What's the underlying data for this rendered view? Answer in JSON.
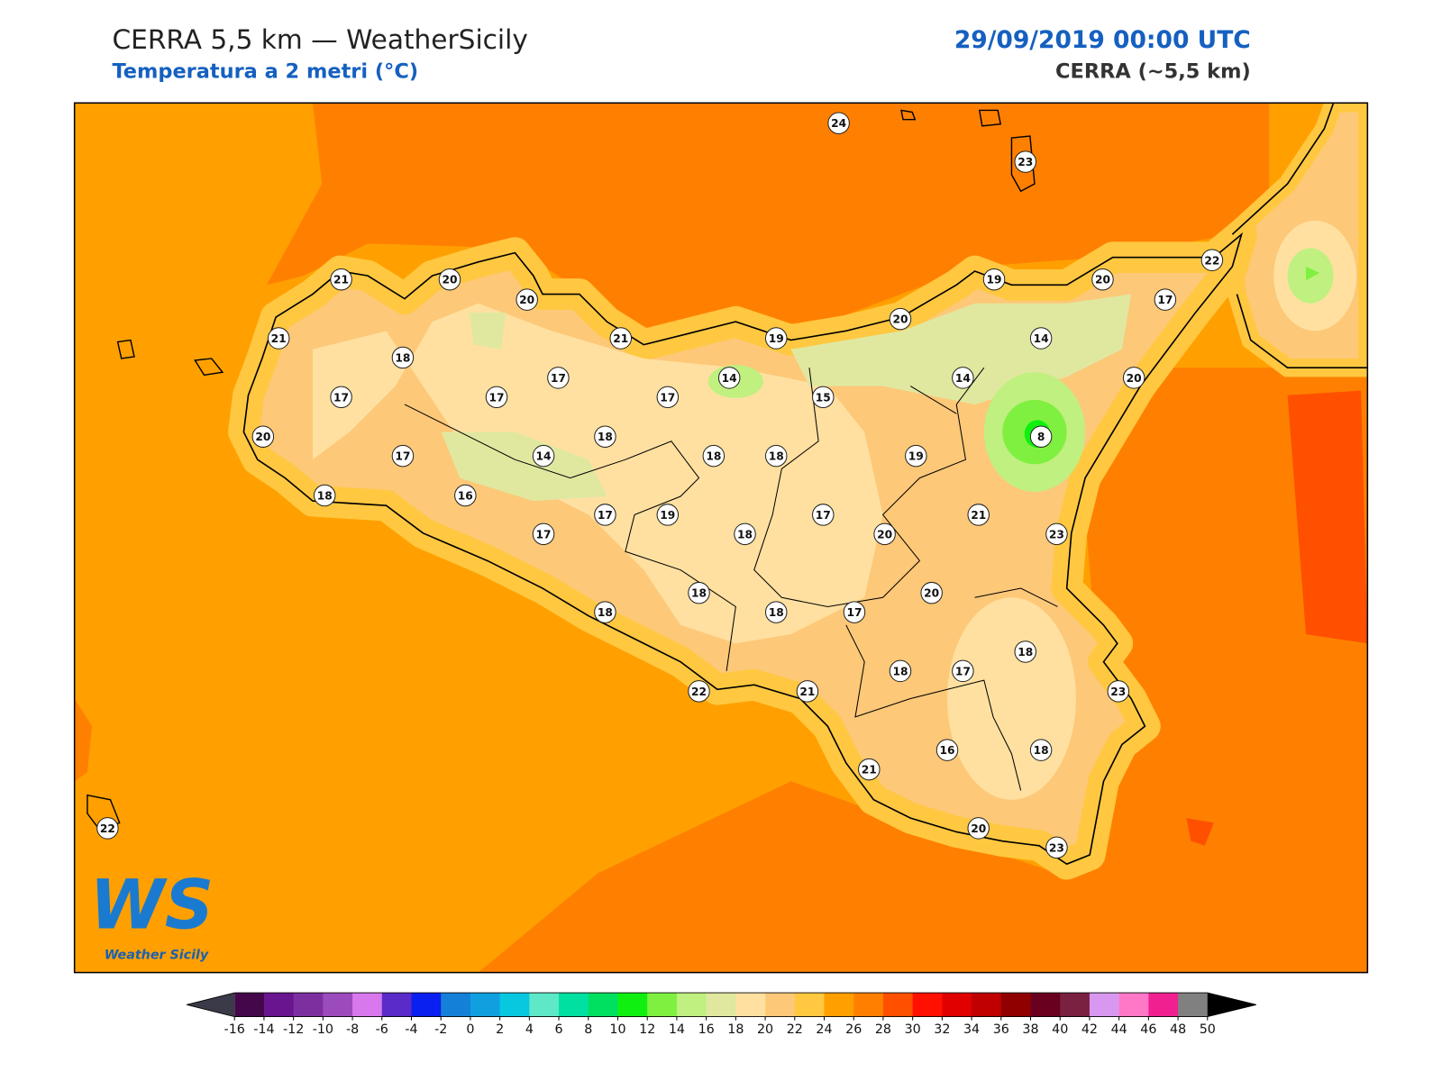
{
  "header": {
    "title": "CERRA 5,5 km — WeatherSicily",
    "subtitle": "Temperatura a 2 metri (°C)",
    "date": "29/09/2019 00:00 UTC",
    "model": "CERRA (~5,5 km)"
  },
  "stations": [
    24,
    23,
    21,
    20,
    20,
    19,
    20,
    22,
    17,
    21,
    18,
    21,
    19,
    20,
    14,
    17,
    17,
    17,
    17,
    14,
    15,
    14,
    20,
    20,
    18,
    8,
    17,
    14,
    18,
    18,
    19,
    18,
    16,
    17,
    19,
    17,
    18,
    17,
    21,
    20,
    23,
    20,
    18,
    18,
    18,
    17,
    18,
    18,
    17,
    22,
    21,
    23,
    16,
    18,
    21,
    20,
    23,
    22
  ],
  "logo": {
    "mark": "WS",
    "text": "Weather Sicily"
  },
  "colorbar": {
    "ticks": [
      -16,
      -14,
      -12,
      -10,
      -8,
      -6,
      -4,
      -2,
      0,
      2,
      4,
      6,
      8,
      10,
      12,
      14,
      16,
      18,
      20,
      22,
      24,
      26,
      28,
      30,
      32,
      34,
      36,
      38,
      40,
      42,
      44,
      46,
      48,
      50
    ],
    "colors": [
      "#44084a",
      "#6a1590",
      "#7d2fa0",
      "#9c4bbc",
      "#d878ec",
      "#5a2bc8",
      "#0a20f0",
      "#1580d8",
      "#10a0e0",
      "#08c8e0",
      "#5ee8c8",
      "#00e0a0",
      "#00e060",
      "#10f010",
      "#80f040",
      "#c0f080",
      "#e0e8a0",
      "#ffe0a0",
      "#fdc878",
      "#ffc840",
      "#ffa000",
      "#ff8000",
      "#ff5000",
      "#ff1000",
      "#e00000",
      "#c00000",
      "#900000",
      "#6a0020",
      "#7a2040",
      "#d898f0",
      "#ff78c8",
      "#f02090",
      "#808080"
    ],
    "under_color": "#3a3a48",
    "over_color": "#000000"
  }
}
